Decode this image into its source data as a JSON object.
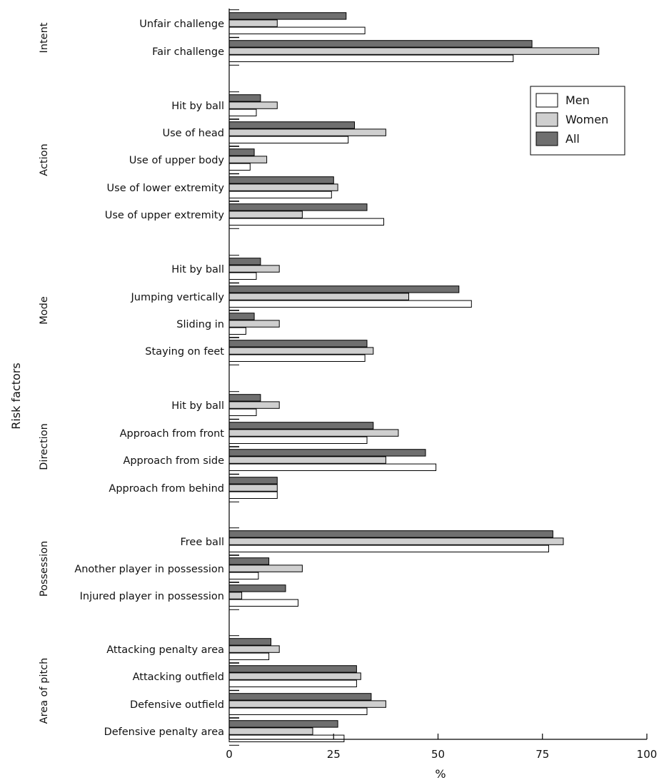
{
  "chart_data": {
    "type": "bar",
    "orientation": "horizontal",
    "xlabel": "%",
    "ylabel": "Risk factors",
    "xlim": [
      0,
      100
    ],
    "xticks": [
      0,
      25,
      50,
      75,
      100
    ],
    "grid": false,
    "legend_position": "top-right",
    "colors": {
      "Men": "#ffffff",
      "Women": "#cfcfcf",
      "All": "#6f6f6f"
    },
    "series": [
      {
        "name": "Men"
      },
      {
        "name": "Women"
      },
      {
        "name": "All"
      }
    ],
    "groups": [
      {
        "name": "Intent",
        "categories": [
          {
            "label": "Unfair challenge",
            "All": 28,
            "Women": 11.5,
            "Men": 32.5
          },
          {
            "label": "Fair challenge",
            "All": 72.5,
            "Women": 88.5,
            "Men": 68
          }
        ]
      },
      {
        "name": "Action",
        "categories": [
          {
            "label": "Hit by ball",
            "All": 7.5,
            "Women": 11.5,
            "Men": 6.5
          },
          {
            "label": "Use of head",
            "All": 30,
            "Women": 37.5,
            "Men": 28.5
          },
          {
            "label": "Use of upper body",
            "All": 6,
            "Women": 9,
            "Men": 5
          },
          {
            "label": "Use of lower extremity",
            "All": 25,
            "Women": 26,
            "Men": 24.5
          },
          {
            "label": "Use of upper extremity",
            "All": 33,
            "Women": 17.5,
            "Men": 37
          }
        ]
      },
      {
        "name": "Mode",
        "categories": [
          {
            "label": "Hit by ball",
            "All": 7.5,
            "Women": 12,
            "Men": 6.5
          },
          {
            "label": "Jumping vertically",
            "All": 55,
            "Women": 43,
            "Men": 58
          },
          {
            "label": "Sliding in",
            "All": 6,
            "Women": 12,
            "Men": 4
          },
          {
            "label": "Staying on feet",
            "All": 33,
            "Women": 34.5,
            "Men": 32.5
          }
        ]
      },
      {
        "name": "Direction",
        "categories": [
          {
            "label": "Hit by ball",
            "All": 7.5,
            "Women": 12,
            "Men": 6.5
          },
          {
            "label": "Approach from front",
            "All": 34.5,
            "Women": 40.5,
            "Men": 33
          },
          {
            "label": "Approach from side",
            "All": 47,
            "Women": 37.5,
            "Men": 49.5
          },
          {
            "label": "Approach from behind",
            "All": 11.5,
            "Women": 11.5,
            "Men": 11.5
          }
        ]
      },
      {
        "name": "Possession",
        "categories": [
          {
            "label": "Free ball",
            "All": 77.5,
            "Women": 80,
            "Men": 76.5
          },
          {
            "label": "Another player in possession",
            "All": 9.5,
            "Women": 17.5,
            "Men": 7
          },
          {
            "label": "Injured player in possession",
            "All": 13.5,
            "Women": 3,
            "Men": 16.5
          }
        ]
      },
      {
        "name": "Area of pitch",
        "categories": [
          {
            "label": "Attacking penalty area",
            "All": 10,
            "Women": 12,
            "Men": 9.5
          },
          {
            "label": "Attacking outfield",
            "All": 30.5,
            "Women": 31.5,
            "Men": 30.5
          },
          {
            "label": "Defensive outfield",
            "All": 34,
            "Women": 37.5,
            "Men": 33
          },
          {
            "label": "Defensive penalty area",
            "All": 26,
            "Women": 20,
            "Men": 27.5
          }
        ]
      }
    ]
  }
}
